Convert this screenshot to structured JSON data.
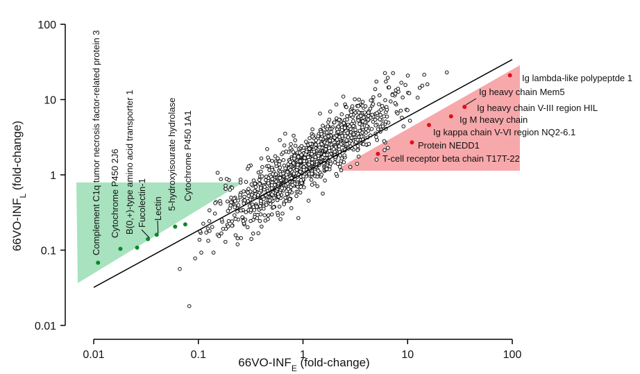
{
  "chart_data": {
    "type": "scatter",
    "title": "",
    "xlabel": "66VO-INF",
    "xlabel_sub": "E",
    "xlabel_suffix": " (fold-change)",
    "ylabel": "66VO-INF",
    "ylabel_sub": "L",
    "ylabel_suffix": " (fold-change)",
    "xscale": "log",
    "yscale": "log",
    "xlim": [
      0.01,
      100
    ],
    "ylim": [
      0.01,
      100
    ],
    "xticks": [
      "0.01",
      "0.1",
      "1",
      "10",
      "100"
    ],
    "yticks": [
      "0.01",
      "0.1",
      "1",
      "10",
      "100"
    ],
    "grid": false,
    "fit_line": {
      "x": [
        0.01,
        100
      ],
      "y": [
        0.032,
        34
      ]
    },
    "background_points": "approximately 1200 open-circle points scattered around the diagonal (not individually legible)",
    "green_region_color": "#a8e2bf",
    "red_region_color": "#f7a8ab",
    "down_regulated": [
      {
        "label": "Complement C1q tumor necrosis factor-related protein 3",
        "x": 0.011,
        "y": 0.068
      },
      {
        "label": "Cytochrome P450 2J6",
        "x": 0.018,
        "y": 0.104
      },
      {
        "label": "B(0,+)-type amino acid transporter 1",
        "x": 0.026,
        "y": 0.108
      },
      {
        "label": "Fucolectin-1",
        "x": 0.033,
        "y": 0.14
      },
      {
        "label": "Lectin",
        "x": 0.04,
        "y": 0.16
      },
      {
        "label": "5-hydroxyisourate hydrolase",
        "x": 0.06,
        "y": 0.205
      },
      {
        "label": "Cytochrome P450 1A1",
        "x": 0.075,
        "y": 0.22
      }
    ],
    "up_regulated": [
      {
        "label": "Ig lambda-like polypeptde 1",
        "x": 95,
        "y": 21
      },
      {
        "label": "Ig heavy chain Mem5",
        "x": 35,
        "y": 8.0
      },
      {
        "label": "Ig heavy chain V-III region HIL",
        "x": 35,
        "y": 8.0
      },
      {
        "label": "Ig M heavy chain",
        "x": 26,
        "y": 6.0
      },
      {
        "label": "Ig kappa chain V-VI region NQ2-6.1",
        "x": 16,
        "y": 4.6
      },
      {
        "label": "Protein NEDD1",
        "x": 11,
        "y": 2.7
      },
      {
        "label": "T-cell receptor beta chain T17T-22",
        "x": 5.2,
        "y": 1.9
      }
    ],
    "colors": {
      "down": "#0a8a2a",
      "up": "#e0101a",
      "points": "#111111"
    }
  }
}
